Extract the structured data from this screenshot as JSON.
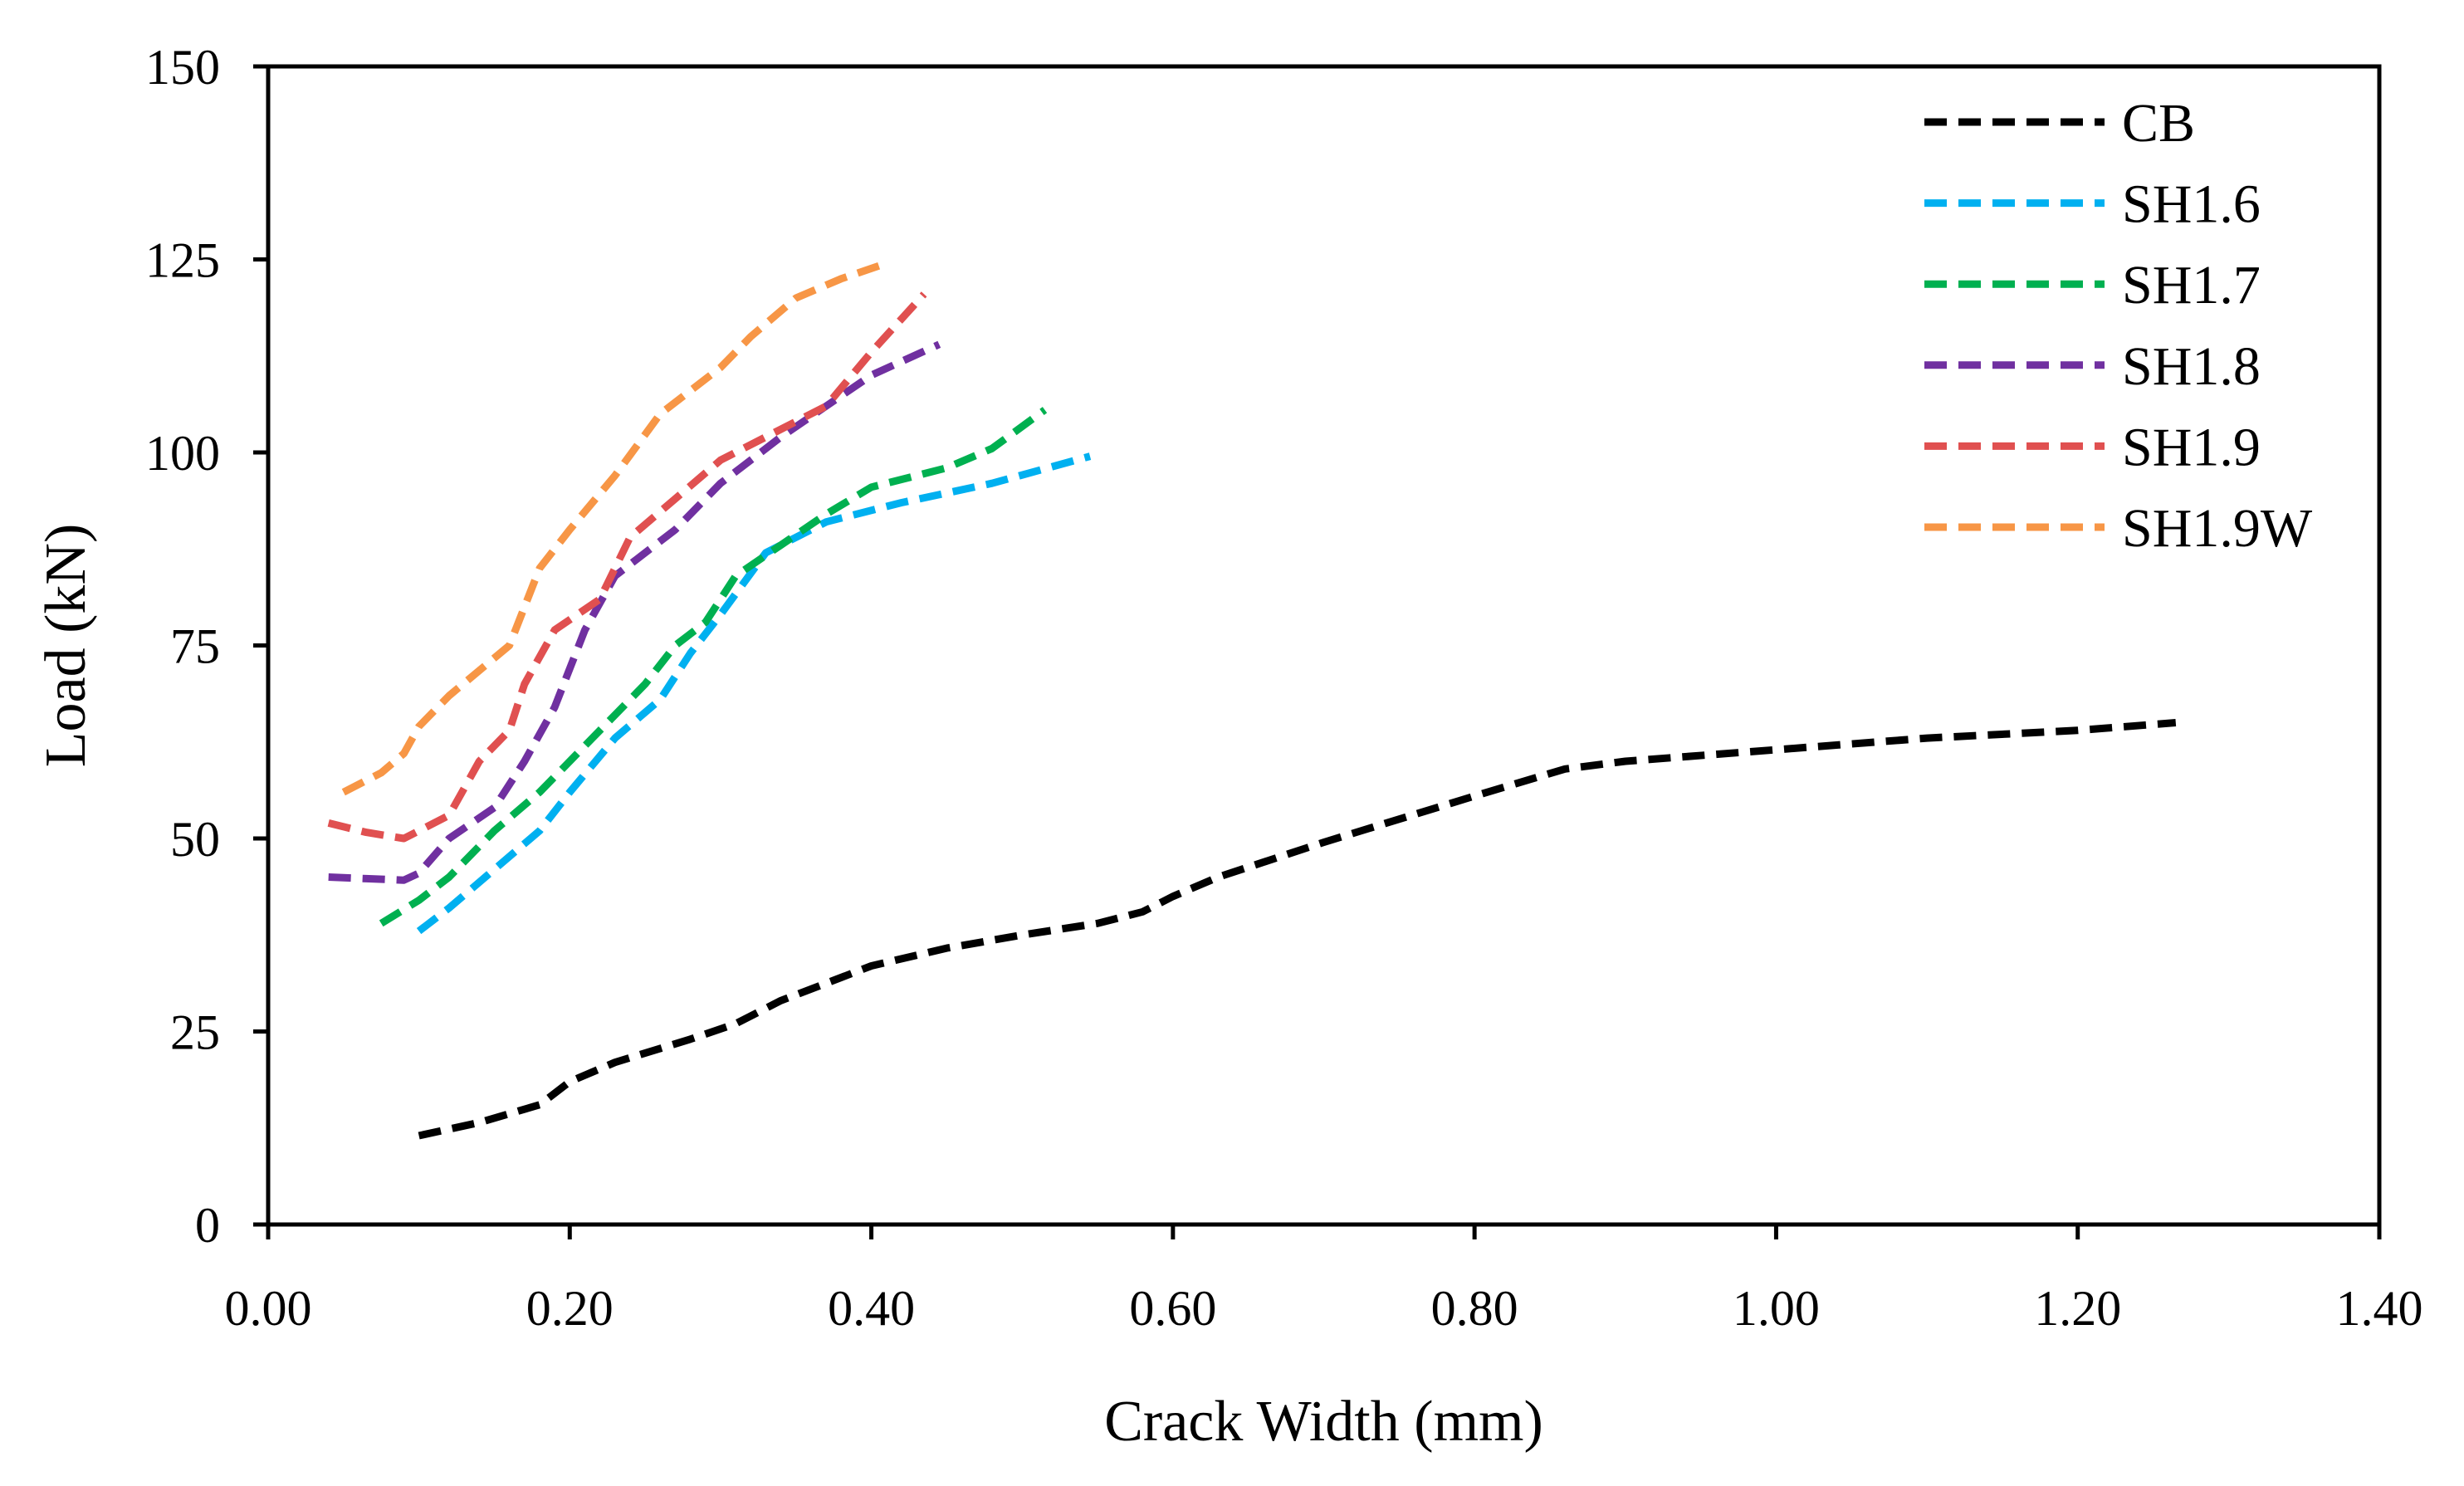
{
  "chart_data": {
    "type": "line",
    "title": "",
    "xlabel": "Crack Width (mm)",
    "ylabel": "Load (kN)",
    "xlim": [
      0,
      1.4
    ],
    "ylim": [
      0,
      150
    ],
    "x_ticks": [
      0,
      0.2,
      0.4,
      0.6,
      0.8,
      1.0,
      1.2,
      1.4
    ],
    "x_tick_labels": [
      "0.00",
      "0.20",
      "0.40",
      "0.60",
      "0.80",
      "1.00",
      "1.20",
      "1.40"
    ],
    "y_ticks": [
      0,
      25,
      50,
      75,
      100,
      125,
      150
    ],
    "y_tick_labels": [
      "0",
      "25",
      "50",
      "75",
      "100",
      "125",
      "150"
    ],
    "grid": false,
    "legend_position": "top-right",
    "series": [
      {
        "name": "CB",
        "color": "#000000",
        "x": [
          0.1,
          0.14,
          0.18,
          0.2,
          0.23,
          0.28,
          0.31,
          0.34,
          0.4,
          0.45,
          0.5,
          0.55,
          0.58,
          0.6,
          0.63,
          0.7,
          0.8,
          0.86,
          0.9,
          1.0,
          1.1,
          1.2,
          1.265
        ],
        "y": [
          11.5,
          13.2,
          15.5,
          18.5,
          21.0,
          24.0,
          26.0,
          29.0,
          33.5,
          35.8,
          37.5,
          39.0,
          40.5,
          42.5,
          45.0,
          49.5,
          55.5,
          59.0,
          60.0,
          61.5,
          63.0,
          64.0,
          65.0
        ]
      },
      {
        "name": "SH1.6",
        "color": "#00B0F0",
        "x": [
          0.1,
          0.12,
          0.15,
          0.18,
          0.2,
          0.23,
          0.26,
          0.28,
          0.3,
          0.33,
          0.37,
          0.42,
          0.48,
          0.545
        ],
        "y": [
          38,
          41,
          46,
          51,
          56,
          63,
          68,
          74,
          79,
          87,
          91,
          93.5,
          96,
          99.5
        ]
      },
      {
        "name": "SH1.7",
        "color": "#00B050",
        "x": [
          0.075,
          0.1,
          0.12,
          0.15,
          0.18,
          0.2,
          0.22,
          0.25,
          0.27,
          0.29,
          0.31,
          0.34,
          0.37,
          0.4,
          0.45,
          0.48,
          0.515
        ],
        "y": [
          39,
          42,
          45,
          51,
          56,
          60,
          64,
          70,
          75,
          78,
          84,
          88,
          92,
          95.5,
          98,
          100.5,
          105.5
        ]
      },
      {
        "name": "SH1.8",
        "color": "#7030A0",
        "x": [
          0.04,
          0.065,
          0.09,
          0.1,
          0.12,
          0.15,
          0.17,
          0.19,
          0.21,
          0.23,
          0.27,
          0.3,
          0.34,
          0.37,
          0.4,
          0.445
        ],
        "y": [
          45,
          44.8,
          44.6,
          45.5,
          50,
          54,
          60,
          67,
          77,
          84,
          90,
          96,
          102,
          106,
          110,
          114
        ]
      },
      {
        "name": "SH1.9",
        "color": "#E05050",
        "x": [
          0.04,
          0.065,
          0.09,
          0.12,
          0.14,
          0.16,
          0.17,
          0.19,
          0.22,
          0.24,
          0.27,
          0.3,
          0.33,
          0.37,
          0.4,
          0.435
        ],
        "y": [
          52,
          50.8,
          50,
          53,
          60,
          64,
          70,
          77,
          81,
          89,
          94,
          99,
          102,
          106,
          113,
          120.5
        ]
      },
      {
        "name": "SH1.9W",
        "color": "#F79646",
        "x": [
          0.05,
          0.075,
          0.09,
          0.1,
          0.12,
          0.16,
          0.18,
          0.2,
          0.23,
          0.26,
          0.3,
          0.32,
          0.35,
          0.38,
          0.41
        ],
        "y": [
          56,
          58.5,
          61,
          64.5,
          68.5,
          75,
          85,
          90,
          97,
          105,
          111,
          115,
          120,
          122.5,
          124.5
        ]
      }
    ]
  }
}
